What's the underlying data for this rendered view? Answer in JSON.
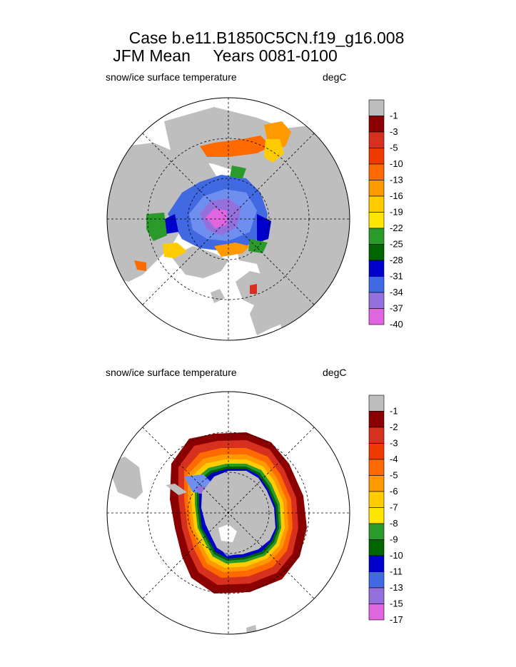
{
  "header": {
    "title_line1": "Case b.e11.B1850C5CN.f19_g16.008",
    "title_line2": "JFM Mean     Years 0081-0100"
  },
  "chart_data": [
    {
      "type": "heatmap",
      "name": "Arctic (northern hemisphere) polar stereographic map",
      "title": "snow/ice surface temperature",
      "units": "degC",
      "colorbar": {
        "levels": [
          "-1",
          "-3",
          "-5",
          "-10",
          "-13",
          "-16",
          "-19",
          "-22",
          "-25",
          "-28",
          "-31",
          "-34",
          "-37",
          "-40"
        ],
        "colors": [
          "#bebebe",
          "#8b0000",
          "#d7301f",
          "#f03b00",
          "#ff6a00",
          "#ff9900",
          "#ffcc00",
          "#ffe600",
          "#2a9a2a",
          "#006400",
          "#0000cd",
          "#4169e1",
          "#9370db",
          "#e066e0"
        ]
      }
    },
    {
      "type": "heatmap",
      "name": "Antarctic (southern hemisphere) polar stereographic map",
      "title": "snow/ice surface temperature",
      "units": "degC",
      "colorbar": {
        "levels": [
          "-1",
          "-2",
          "-3",
          "-4",
          "-5",
          "-6",
          "-7",
          "-8",
          "-9",
          "-10",
          "-11",
          "-13",
          "-15",
          "-17"
        ],
        "colors": [
          "#bebebe",
          "#8b0000",
          "#d7301f",
          "#f03b00",
          "#ff6a00",
          "#ff9900",
          "#ffcc00",
          "#ffe600",
          "#2a9a2a",
          "#006400",
          "#0000cd",
          "#4169e1",
          "#9370db",
          "#e066e0"
        ]
      }
    }
  ]
}
